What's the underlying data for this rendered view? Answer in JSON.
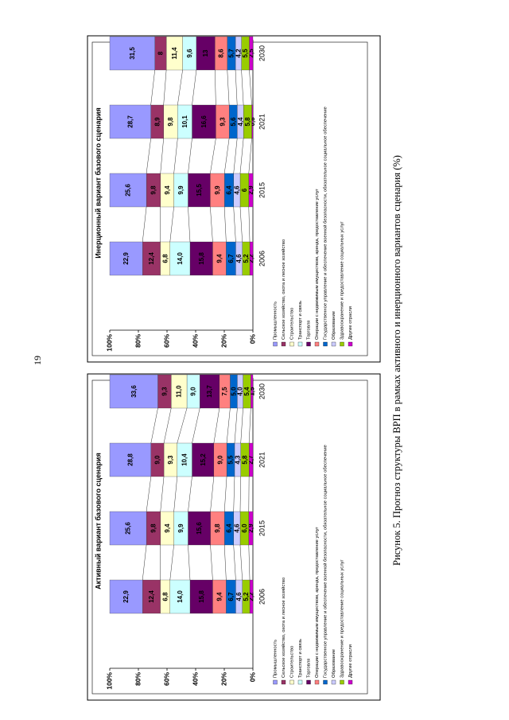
{
  "page_number": "19",
  "caption": "Рисунок 5. Прогноз структуры ВРП в рамках активного и инерционного вариантов сценария (%)",
  "chart_data": [
    {
      "type": "bar",
      "stacked": true,
      "title": "Активный вариант базового сценария",
      "categories": [
        "2006",
        "2015",
        "2021",
        "2030"
      ],
      "ylim": [
        0,
        100
      ],
      "yticks": [
        {
          "value": 0,
          "label": "0%"
        },
        {
          "value": 20,
          "label": "20%"
        },
        {
          "value": 40,
          "label": "40%"
        },
        {
          "value": 60,
          "label": "60%"
        },
        {
          "value": 80,
          "label": "80%"
        },
        {
          "value": 100,
          "label": "100%"
        }
      ],
      "series": [
        {
          "name": "Промышленность",
          "color": "#9999ff",
          "values": [
            22.9,
            25.6,
            28.8,
            33.6
          ],
          "value_labels": [
            "22,9",
            "25,6",
            "28,8",
            "33,6"
          ]
        },
        {
          "name": "Сельское хозяйство, охота и лесное хозяйство",
          "color": "#993366",
          "values": [
            12.4,
            9.8,
            9.0,
            9.3
          ],
          "value_labels": [
            "12,4",
            "9,8",
            "9,0",
            "9,3"
          ]
        },
        {
          "name": "Строительство",
          "color": "#ffffcc",
          "values": [
            6.8,
            9.4,
            9.3,
            11.0
          ],
          "value_labels": [
            "6,8",
            "9,4",
            "9,3",
            "11,0"
          ]
        },
        {
          "name": "Транспорт и связь",
          "color": "#ccffff",
          "values": [
            14.0,
            9.9,
            10.4,
            9.0
          ],
          "value_labels": [
            "14,0",
            "9,9",
            "10,4",
            "9,0"
          ]
        },
        {
          "name": "Торговля",
          "color": "#660066",
          "values": [
            15.8,
            15.6,
            15.2,
            13.7
          ],
          "value_labels": [
            "15,8",
            "15,6",
            "15,2",
            "13,7"
          ]
        },
        {
          "name": "Операции с недвижимым имуществом, аренда, предоставление услуг",
          "color": "#ff8080",
          "values": [
            9.4,
            9.8,
            9.0,
            7.5
          ],
          "value_labels": [
            "9,4",
            "9,8",
            "9,0",
            "7,5"
          ]
        },
        {
          "name": "Государственное управление и обеспечение военной безопасности, обязательное социальное обеспечение",
          "color": "#0066cc",
          "values": [
            6.7,
            6.4,
            5.5,
            5.0
          ],
          "value_labels": [
            "6,7",
            "6,4",
            "5,5",
            "5,0"
          ]
        },
        {
          "name": "Образование",
          "color": "#ccccff",
          "values": [
            4.6,
            4.6,
            4.3,
            4.0
          ],
          "value_labels": [
            "4,6",
            "4,6",
            "4,3",
            "4,0"
          ]
        },
        {
          "name": "Здравоохранение и предоставление социальных услуг",
          "color": "#99cc00",
          "values": [
            5.2,
            6.0,
            5.8,
            5.4
          ],
          "value_labels": [
            "5,2",
            "6,0",
            "5,8",
            "5,4"
          ]
        },
        {
          "name": "Другие отрасли",
          "color": "#cc00cc",
          "values": [
            2.2,
            2.9,
            2.7,
            1.5
          ],
          "value_labels": [
            "2,2",
            "2,9",
            "2,7",
            "1,5"
          ]
        }
      ]
    },
    {
      "type": "bar",
      "stacked": true,
      "title": "Инерционный вариант базового сценария",
      "categories": [
        "2006",
        "2015",
        "2021",
        "2030"
      ],
      "ylim": [
        0,
        100
      ],
      "yticks": [
        {
          "value": 0,
          "label": "0%"
        },
        {
          "value": 20,
          "label": "20%"
        },
        {
          "value": 40,
          "label": "40%"
        },
        {
          "value": 60,
          "label": "60%"
        },
        {
          "value": 80,
          "label": "80%"
        },
        {
          "value": 100,
          "label": "100%"
        }
      ],
      "series": [
        {
          "name": "Промышленность",
          "color": "#9999ff",
          "values": [
            22.9,
            25.6,
            28.7,
            31.5
          ],
          "value_labels": [
            "22,9",
            "25,6",
            "28,7",
            "31,5"
          ]
        },
        {
          "name": "Сельское хозяйство, охота и лесное хозяйство",
          "color": "#993366",
          "values": [
            12.4,
            9.8,
            8.9,
            8
          ],
          "value_labels": [
            "12,4",
            "9,8",
            "8,9",
            "8"
          ]
        },
        {
          "name": "Строительство",
          "color": "#ffffcc",
          "values": [
            6.8,
            9.4,
            9.8,
            11.4
          ],
          "value_labels": [
            "6,8",
            "9,4",
            "9,8",
            "11,4"
          ]
        },
        {
          "name": "Транспорт и связь",
          "color": "#ccffff",
          "values": [
            14.0,
            9.9,
            10.1,
            9.6
          ],
          "value_labels": [
            "14,0",
            "9,9",
            "10,1",
            "9,6"
          ]
        },
        {
          "name": "Торговля",
          "color": "#660066",
          "values": [
            15.8,
            15.5,
            16.6,
            13
          ],
          "value_labels": [
            "15,8",
            "15,5",
            "16,6",
            "13"
          ]
        },
        {
          "name": "Операции с недвижимым имуществом, аренда, предоставление услуг",
          "color": "#ff8080",
          "values": [
            9.4,
            9.9,
            9.3,
            8.6
          ],
          "value_labels": [
            "9,4",
            "9,9",
            "9,3",
            "8,6"
          ]
        },
        {
          "name": "Государственное управление и обеспечение военной безопасности, обязательное социальное обеспечение",
          "color": "#0066cc",
          "values": [
            6.7,
            6.4,
            5.6,
            5.7
          ],
          "value_labels": [
            "6,7",
            "6,4",
            "5,6",
            "5,7"
          ]
        },
        {
          "name": "Образование",
          "color": "#ccccff",
          "values": [
            4.6,
            4.6,
            4.4,
            4.2
          ],
          "value_labels": [
            "4,6",
            "4,6",
            "4,4",
            "4,2"
          ]
        },
        {
          "name": "Здравоохранение и предоставление социальных услуг",
          "color": "#99cc00",
          "values": [
            5.2,
            6,
            5.8,
            5.5
          ],
          "value_labels": [
            "5,2",
            "6",
            "5,8",
            "5,5"
          ]
        },
        {
          "name": "Другие отрасли",
          "color": "#cc00cc",
          "values": [
            2.2,
            2.9,
            0.8,
            2.5
          ],
          "value_labels": [
            "2,2",
            "2,9",
            "0,8",
            "2,5"
          ]
        }
      ]
    }
  ]
}
